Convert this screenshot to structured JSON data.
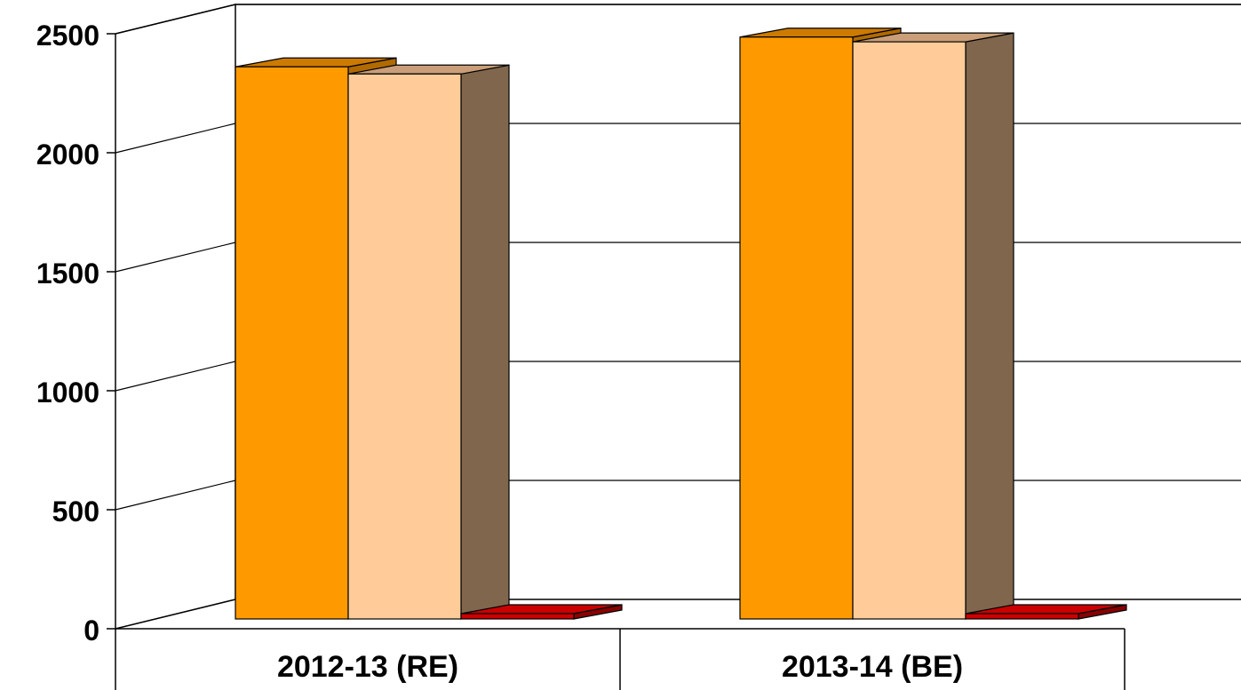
{
  "chart_data": {
    "type": "bar",
    "title": "",
    "xlabel": "",
    "ylabel": "",
    "categories": [
      "2012-13 (RE)",
      "2013-14 (BE)"
    ],
    "ylim": [
      0,
      2500
    ],
    "yticks": [
      "0",
      "500",
      "1000",
      "1500",
      "2000",
      "2500"
    ],
    "grid": true,
    "three_d": true,
    "legend": "none",
    "series": [
      {
        "values": [
          2320,
          2445
        ],
        "color": "#FF9900"
      },
      {
        "values": [
          2290,
          2425
        ],
        "color": "#FFCC99"
      },
      {
        "values": [
          0,
          0
        ],
        "color": "#CC0000"
      }
    ]
  }
}
